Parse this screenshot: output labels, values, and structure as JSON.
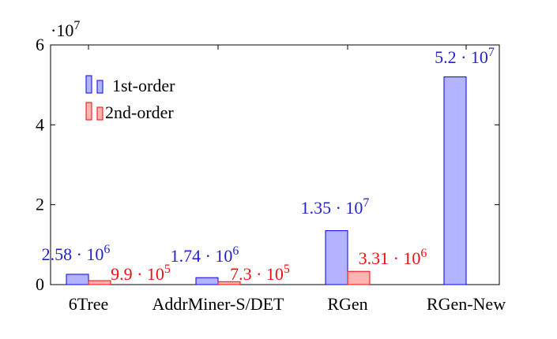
{
  "chart_data": {
    "type": "bar",
    "categories": [
      "6Tree",
      "AddrMiner-S/DET",
      "RGen",
      "RGen-New"
    ],
    "series": [
      {
        "name": "1st-order",
        "values": [
          2580000,
          1740000,
          13500000,
          52000000
        ],
        "labels": [
          "2.58 · 10^6",
          "1.74 · 10^6",
          "1.35 · 10^7",
          "5.2 · 10^7"
        ],
        "color": "#0000ff",
        "fill": "#b3b3ff",
        "label_color": "#2222cc"
      },
      {
        "name": "2nd-order",
        "values": [
          990000,
          730000,
          3310000,
          null
        ],
        "labels": [
          "9.9 · 10^5",
          "7.3 · 10^5",
          "3.31 · 10^6",
          null
        ],
        "color": "#ff0000",
        "fill": "#ffb3b3",
        "label_color": "#ee1111"
      }
    ],
    "ylim": [
      0,
      60000000
    ],
    "yticks": [
      0,
      2,
      4,
      6
    ],
    "y_multiplier": "·10^7",
    "xlabel": "",
    "ylabel": "",
    "grid": false,
    "legend_position": "top-left"
  }
}
